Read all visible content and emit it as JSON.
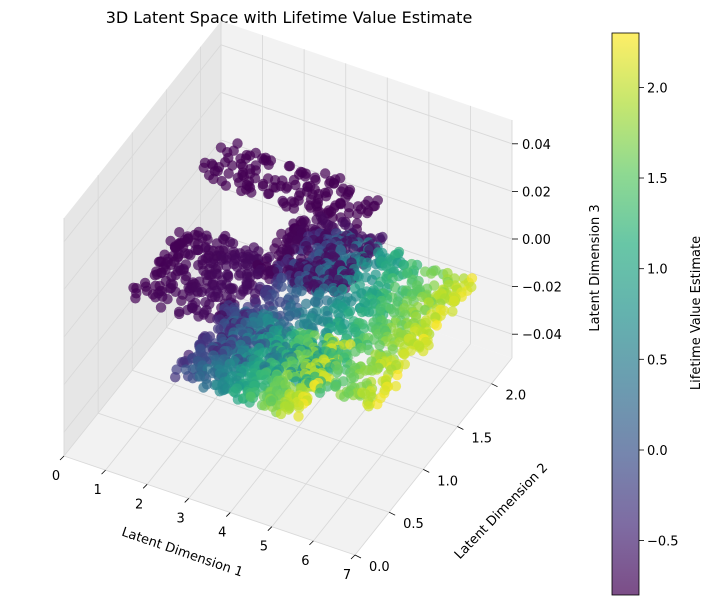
{
  "chart_data": {
    "type": "scatter",
    "projection": "3d",
    "title": "3D Latent Space with Lifetime Value Estimate",
    "xlabel": "Latent Dimension 1",
    "ylabel": "Latent Dimension 2",
    "zlabel": "Latent Dimension 3",
    "xlim": [
      0,
      7
    ],
    "ylim": [
      0,
      2.3
    ],
    "zlim": [
      -0.05,
      0.05
    ],
    "x_ticks": [
      "0",
      "1",
      "2",
      "3",
      "4",
      "5",
      "6",
      "7"
    ],
    "y_ticks": [
      "0.0",
      "0.5",
      "1.0",
      "1.5",
      "2.0"
    ],
    "z_ticks": [
      "−0.04",
      "−0.02",
      "0.00",
      "0.02",
      "0.04"
    ],
    "grid": true,
    "colormap": "viridis",
    "marker_alpha": 0.7,
    "colorbar": {
      "label": "Lifetime Value Estimate",
      "range": [
        -0.8,
        2.3
      ],
      "ticks": [
        "−0.5",
        "0.0",
        "0.5",
        "1.0",
        "1.5",
        "2.0"
      ],
      "tick_values": [
        -0.5,
        0,
        0.5,
        1,
        1.5,
        2
      ]
    },
    "clusters": [
      {
        "name_hint": "strip",
        "x_range": [
          0.0,
          4.0
        ],
        "y_range": [
          1.9,
          2.3
        ],
        "z": 0.0,
        "value_range": [
          -0.8,
          -0.8
        ]
      },
      {
        "name_hint": "block-back",
        "x_range": [
          2.6,
          4.6
        ],
        "y_range": [
          1.2,
          1.9
        ],
        "z": 0.0,
        "value_range": [
          -0.8,
          -0.6
        ]
      },
      {
        "name_hint": "block-front",
        "x_range": [
          0.6,
          2.8
        ],
        "y_range": [
          0.6,
          1.4
        ],
        "z": 0.0,
        "value_range": [
          -0.8,
          -0.7
        ]
      },
      {
        "name_hint": "gradient-main",
        "x_range": [
          3.0,
          7.0
        ],
        "y_range": [
          0.3,
          1.8
        ],
        "z": 0.0,
        "value_range": [
          -0.5,
          2.2
        ]
      },
      {
        "name_hint": "gradient-front",
        "x_range": [
          2.6,
          5.6
        ],
        "y_range": [
          0.0,
          0.8
        ],
        "z": 0.0,
        "value_range": [
          -0.4,
          2.2
        ]
      }
    ]
  },
  "colors": {
    "pane": "#f2f2f2",
    "pane_side": "#e6e6e6",
    "grid": "#d9d9d9",
    "text": "#000000"
  }
}
